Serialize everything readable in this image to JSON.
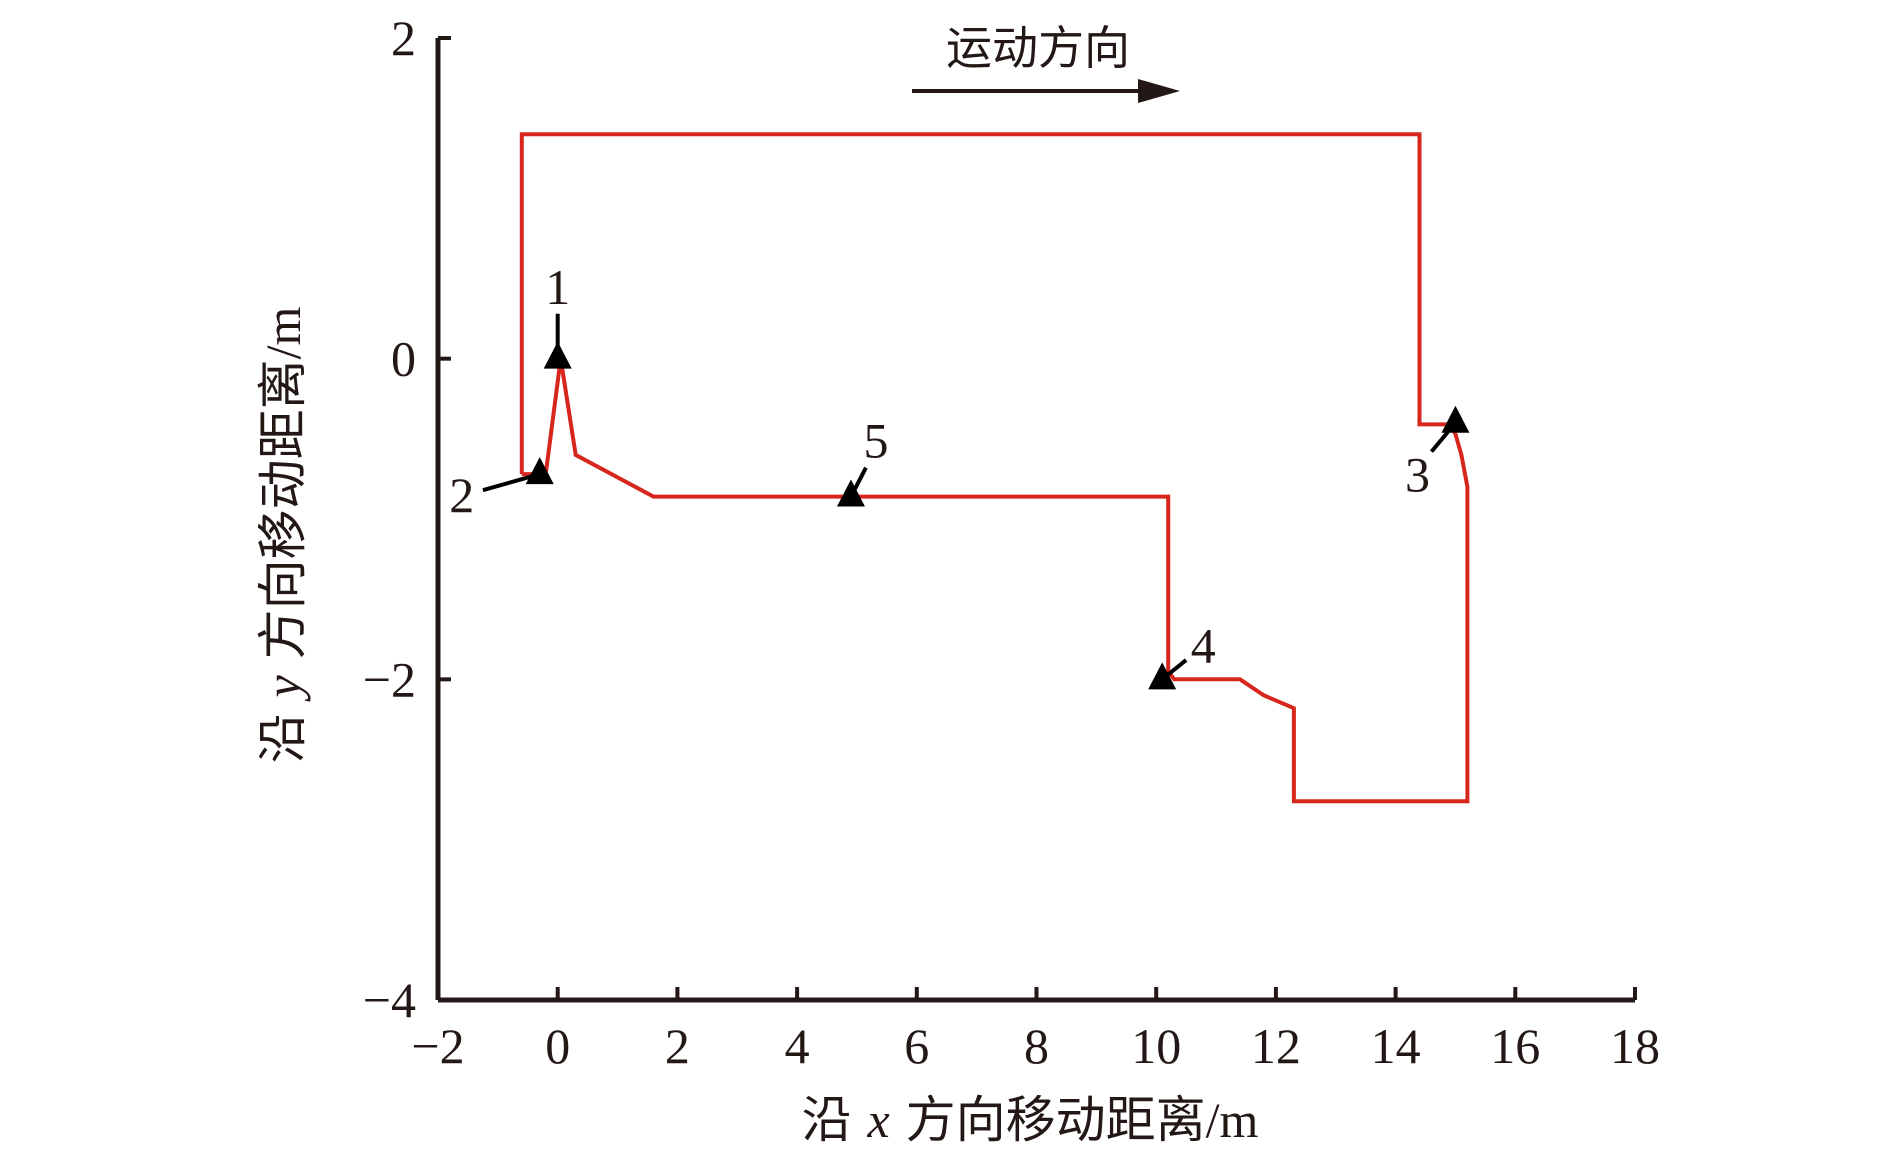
{
  "chart_data": {
    "type": "line",
    "xlabel": {
      "prefix": "沿 ",
      "var": "x",
      "suffix": " 方向移动距离",
      "unit": "/m"
    },
    "ylabel": {
      "prefix": "沿 ",
      "var": "y",
      "suffix": " 方向移动距离",
      "unit": "/m"
    },
    "xlim": [
      -2,
      18
    ],
    "ylim": [
      -4,
      2
    ],
    "xticks": [
      -2,
      0,
      2,
      4,
      6,
      8,
      10,
      12,
      14,
      16,
      18
    ],
    "yticks": [
      -4,
      -2,
      0,
      2
    ],
    "xtick_labels": [
      "−2",
      "0",
      "2",
      "4",
      "6",
      "8",
      "10",
      "12",
      "14",
      "16",
      "18"
    ],
    "ytick_labels": [
      "−4",
      "−2",
      "0",
      "2"
    ],
    "grid": false,
    "annotation": {
      "text": "运动方向",
      "direction": "right"
    },
    "series": [
      {
        "color": "#d7261e",
        "points": [
          [
            -0.6,
            -0.72
          ],
          [
            -0.6,
            1.4
          ],
          [
            14.4,
            1.4
          ],
          [
            14.4,
            -0.41
          ],
          [
            14.9,
            -0.41
          ],
          [
            15.0,
            -0.47
          ],
          [
            15.1,
            -0.6
          ],
          [
            15.2,
            -0.8
          ],
          [
            15.2,
            -2.76
          ],
          [
            12.3,
            -2.76
          ],
          [
            12.3,
            -2.18
          ],
          [
            11.8,
            -2.1
          ],
          [
            11.4,
            -2.0
          ],
          [
            10.3,
            -2.0
          ],
          [
            10.2,
            -1.95
          ],
          [
            10.2,
            -0.86
          ],
          [
            1.6,
            -0.86
          ],
          [
            0.3,
            -0.6
          ],
          [
            0.05,
            0.0
          ],
          [
            -0.2,
            -0.72
          ],
          [
            -0.6,
            -0.72
          ]
        ]
      }
    ],
    "markers": [
      {
        "label": "1",
        "x": 0.0,
        "y": 0.0,
        "dx": 0.0,
        "dy": 0.28
      },
      {
        "label": "2",
        "x": -0.3,
        "y": -0.72,
        "dx": -0.95,
        "dy": -0.1
      },
      {
        "label": "3",
        "x": 15.0,
        "y": -0.4,
        "dx": -0.4,
        "dy": -0.18
      },
      {
        "label": "4",
        "x": 10.1,
        "y": -2.0,
        "dx": 0.4,
        "dy": 0.12
      },
      {
        "label": "5",
        "x": 4.9,
        "y": -0.86,
        "dx": 0.25,
        "dy": 0.18
      }
    ],
    "line_color": "#d7261e",
    "axis_color": "#231815"
  }
}
